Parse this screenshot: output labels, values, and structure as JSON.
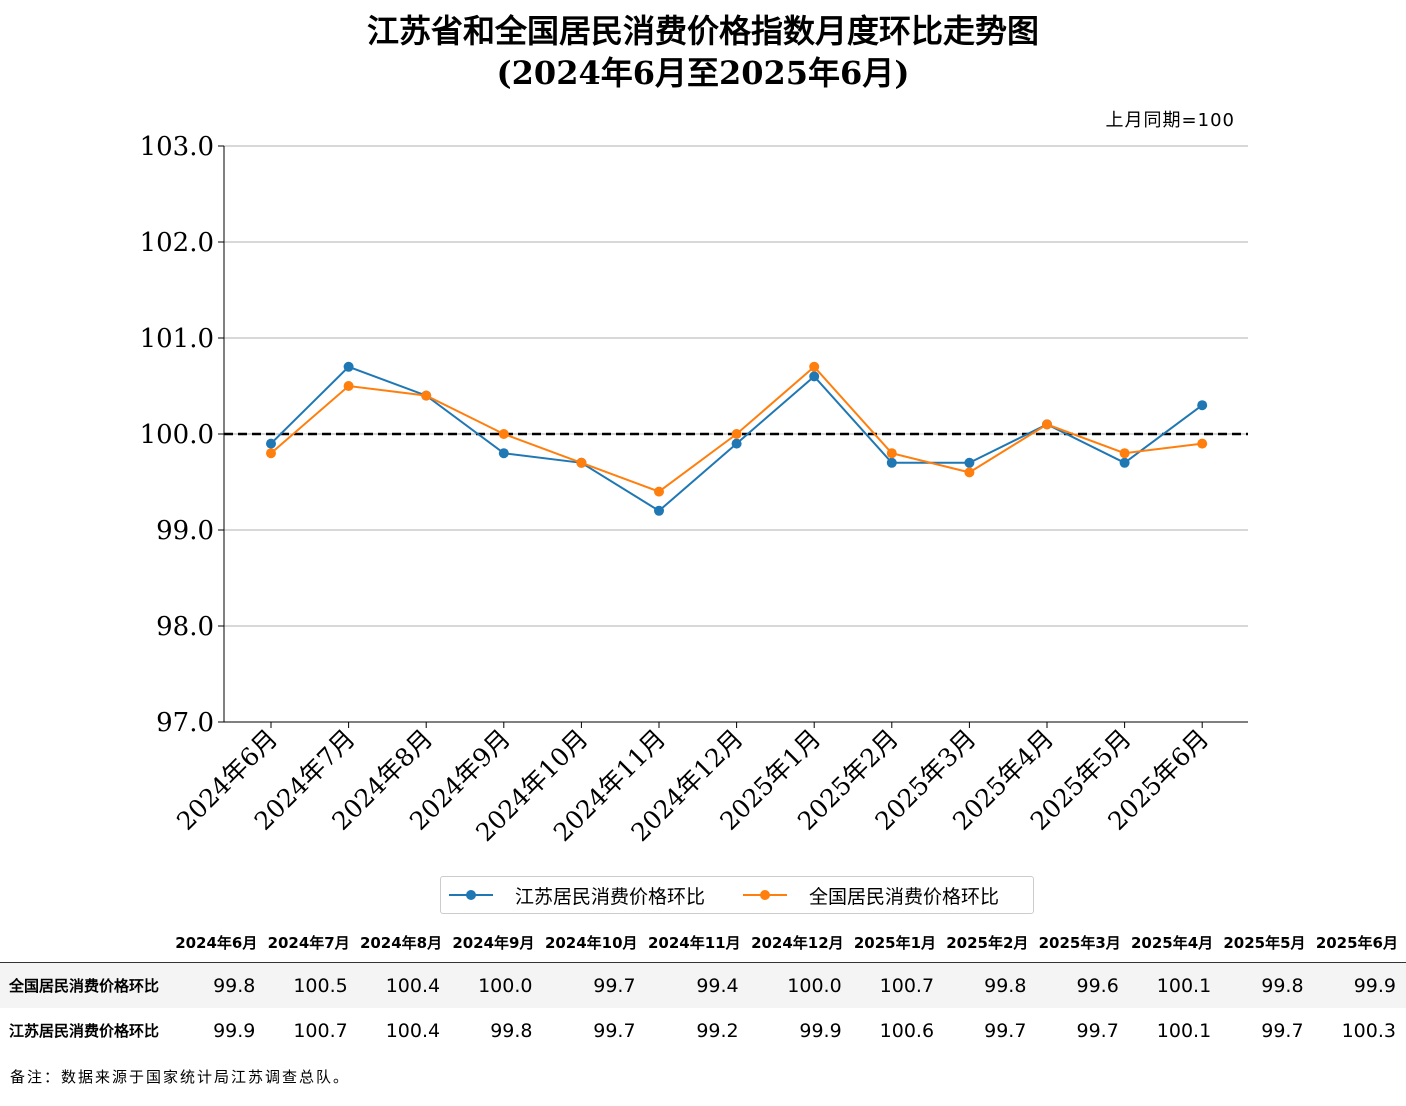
{
  "title": "江苏省和全国居民消费价格指数月度环比走势图",
  "subtitle": "(2024年6月至2025年6月)",
  "chart_data": {
    "type": "line",
    "unit_note": "上月同期=100",
    "categories": [
      "2024年6月",
      "2024年7月",
      "2024年8月",
      "2024年9月",
      "2024年10月",
      "2024年11月",
      "2024年12月",
      "2025年1月",
      "2025年2月",
      "2025年3月",
      "2025年4月",
      "2025年5月",
      "2025年6月"
    ],
    "ylim": [
      97.0,
      103.0
    ],
    "yticks": [
      "97.0",
      "98.0",
      "99.0",
      "100.0",
      "101.0",
      "102.0",
      "103.0"
    ],
    "reference_line": 100.0,
    "grid": "horizontal",
    "legend_position": "bottom-center",
    "series": [
      {
        "name": "江苏居民消费价格环比",
        "color": "#1f77b4",
        "values": [
          99.9,
          100.7,
          100.4,
          99.8,
          99.7,
          99.2,
          99.9,
          100.6,
          99.7,
          99.7,
          100.1,
          99.7,
          100.3
        ]
      },
      {
        "name": "全国居民消费价格环比",
        "color": "#ff7f0e",
        "values": [
          99.8,
          100.5,
          100.4,
          100.0,
          99.7,
          99.4,
          100.0,
          100.7,
          99.8,
          99.6,
          100.1,
          99.8,
          99.9
        ]
      }
    ]
  },
  "table": {
    "rows": [
      {
        "label": "全国居民消费价格环比",
        "values": [
          "99.8",
          "100.5",
          "100.4",
          "100.0",
          "99.7",
          "99.4",
          "100.0",
          "100.7",
          "99.8",
          "99.6",
          "100.1",
          "99.8",
          "99.9"
        ]
      },
      {
        "label": "江苏居民消费价格环比",
        "values": [
          "99.9",
          "100.7",
          "100.4",
          "99.8",
          "99.7",
          "99.2",
          "99.9",
          "100.6",
          "99.7",
          "99.7",
          "100.1",
          "99.7",
          "100.3"
        ]
      }
    ]
  },
  "note": "备注：数据来源于国家统计局江苏调查总队。"
}
